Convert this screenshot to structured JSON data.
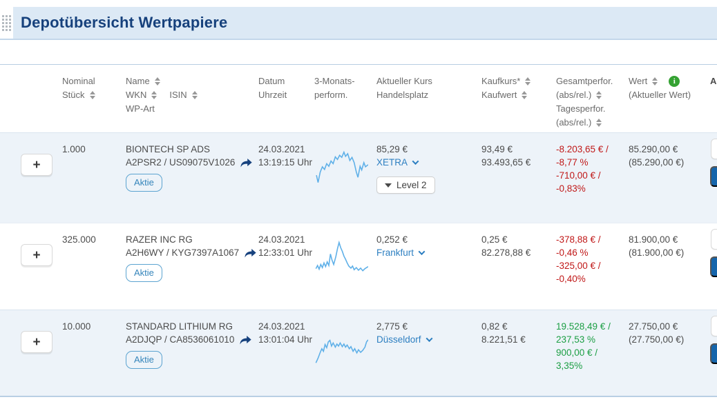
{
  "header": {
    "title": "Depotübersicht Wertpapiere"
  },
  "table": {
    "columns": {
      "nominal_l1": "Nominal",
      "nominal_l2": "Stück",
      "name": "Name",
      "wkn": "WKN",
      "isin": "ISIN",
      "wp_art": "WP-Art",
      "datum_l1": "Datum",
      "datum_l2": "Uhrzeit",
      "perform3m_l1": "3-Monats-",
      "perform3m_l2": "perform.",
      "kurs_l1": "Aktueller Kurs",
      "kurs_l2": "Handelsplatz",
      "kaufkurs": "Kaufkurs*",
      "kaufwert": "Kaufwert",
      "gesamtperf_l1": "Gesamtperfor.",
      "gesamtperf_l2": "(abs/rel.)",
      "tagesperf_l1": "Tagesperfor.",
      "tagesperf_l2": "(abs/rel.)",
      "wert": "Wert",
      "wert_sub": "(Aktueller Wert)",
      "aktionen": "A"
    },
    "rows": [
      {
        "expand": "+",
        "nominal": "1.000",
        "name": "BIONTECH SP ADS",
        "wkn_isin": "A2PSR2 / US09075V1026",
        "type_badge": "Aktie",
        "date": "24.03.2021",
        "time": "13:19:15 Uhr",
        "price": "85,29 €",
        "venue": "XETRA",
        "level2_label": "Level 2",
        "buy_price": "93,49 €",
        "buy_value": "93.493,65 €",
        "perf": {
          "trend": "negative",
          "total_abs": "-8.203,65 € /",
          "total_rel": "-8,77 %",
          "day_abs": "-710,00 € /",
          "day_rel": "-0,83%"
        },
        "value": "85.290,00 €",
        "value_current": "(85.290,00 €)",
        "sparkline": [
          [
            4,
            62
          ],
          [
            7,
            76
          ],
          [
            11,
            56
          ],
          [
            15,
            46
          ],
          [
            19,
            51
          ],
          [
            23,
            40
          ],
          [
            27,
            45
          ],
          [
            31,
            35
          ],
          [
            35,
            40
          ],
          [
            39,
            27
          ],
          [
            43,
            32
          ],
          [
            47,
            24
          ],
          [
            51,
            28
          ],
          [
            55,
            18
          ],
          [
            58,
            26
          ],
          [
            62,
            21
          ],
          [
            66,
            34
          ],
          [
            70,
            28
          ],
          [
            74,
            38
          ],
          [
            78,
            56
          ],
          [
            81,
            66
          ],
          [
            85,
            45
          ],
          [
            88,
            52
          ],
          [
            92,
            38
          ],
          [
            95,
            46
          ],
          [
            100,
            42
          ]
        ]
      },
      {
        "expand": "+",
        "nominal": "325.000",
        "name": "RAZER INC RG",
        "wkn_isin": "A2H6WY / KYG7397A1067",
        "type_badge": "Aktie",
        "date": "24.03.2021",
        "time": "12:33:01 Uhr",
        "price": "0,252 €",
        "venue": "Frankfurt",
        "buy_price": "0,25 €",
        "buy_value": "82.278,88 €",
        "perf": {
          "trend": "negative",
          "total_abs": "-378,88 € /",
          "total_rel": "-0,46 %",
          "day_abs": "-325,00 € /",
          "day_rel": "-0,40%"
        },
        "value": "81.900,00 €",
        "value_current": "(81.900,00 €)",
        "sparkline": [
          [
            3,
            68
          ],
          [
            6,
            62
          ],
          [
            9,
            69
          ],
          [
            12,
            60
          ],
          [
            15,
            66
          ],
          [
            18,
            57
          ],
          [
            21,
            64
          ],
          [
            24,
            55
          ],
          [
            27,
            62
          ],
          [
            30,
            40
          ],
          [
            33,
            52
          ],
          [
            36,
            60
          ],
          [
            40,
            45
          ],
          [
            43,
            30
          ],
          [
            46,
            18
          ],
          [
            49,
            28
          ],
          [
            52,
            35
          ],
          [
            55,
            44
          ],
          [
            58,
            50
          ],
          [
            61,
            57
          ],
          [
            64,
            63
          ],
          [
            68,
            67
          ],
          [
            71,
            63
          ],
          [
            74,
            70
          ],
          [
            78,
            66
          ],
          [
            82,
            71
          ],
          [
            86,
            67
          ],
          [
            90,
            72
          ],
          [
            94,
            68
          ],
          [
            100,
            64
          ]
        ]
      },
      {
        "expand": "+",
        "nominal": "10.000",
        "name": "STANDARD LITHIUM RG",
        "wkn_isin": "A2DJQP / CA8536061010",
        "type_badge": "Aktie",
        "date": "24.03.2021",
        "time": "13:01:04 Uhr",
        "price": "2,775 €",
        "venue": "Düsseldorf",
        "buy_price": "0,82 €",
        "buy_value": "8.221,51 €",
        "perf": {
          "trend": "positive",
          "total_abs": "19.528,49 € /",
          "total_rel": "237,53 %",
          "day_abs": "900,00 € /",
          "day_rel": "3,35%"
        },
        "value": "27.750,00 €",
        "value_current": "(27.750,00 €)",
        "sparkline": [
          [
            3,
            82
          ],
          [
            7,
            73
          ],
          [
            11,
            62
          ],
          [
            14,
            55
          ],
          [
            17,
            60
          ],
          [
            20,
            47
          ],
          [
            23,
            53
          ],
          [
            26,
            42
          ],
          [
            29,
            39
          ],
          [
            32,
            50
          ],
          [
            35,
            44
          ],
          [
            39,
            52
          ],
          [
            42,
            46
          ],
          [
            45,
            50
          ],
          [
            48,
            44
          ],
          [
            52,
            51
          ],
          [
            55,
            46
          ],
          [
            58,
            52
          ],
          [
            61,
            48
          ],
          [
            65,
            55
          ],
          [
            68,
            51
          ],
          [
            72,
            60
          ],
          [
            75,
            55
          ],
          [
            79,
            63
          ],
          [
            82,
            57
          ],
          [
            86,
            62
          ],
          [
            90,
            58
          ],
          [
            94,
            52
          ],
          [
            97,
            42
          ],
          [
            100,
            38
          ]
        ]
      }
    ]
  },
  "colors": {
    "header_bg": "#dce9f5",
    "title_text": "#16417c",
    "row_alt_bg": "#edf3f9",
    "link_blue": "#2d7fc1",
    "negative": "#c01818",
    "positive": "#1b9e43",
    "sparkline": "#5fb0e8",
    "action_blue": "#1565ab",
    "info_green": "#35a233"
  }
}
